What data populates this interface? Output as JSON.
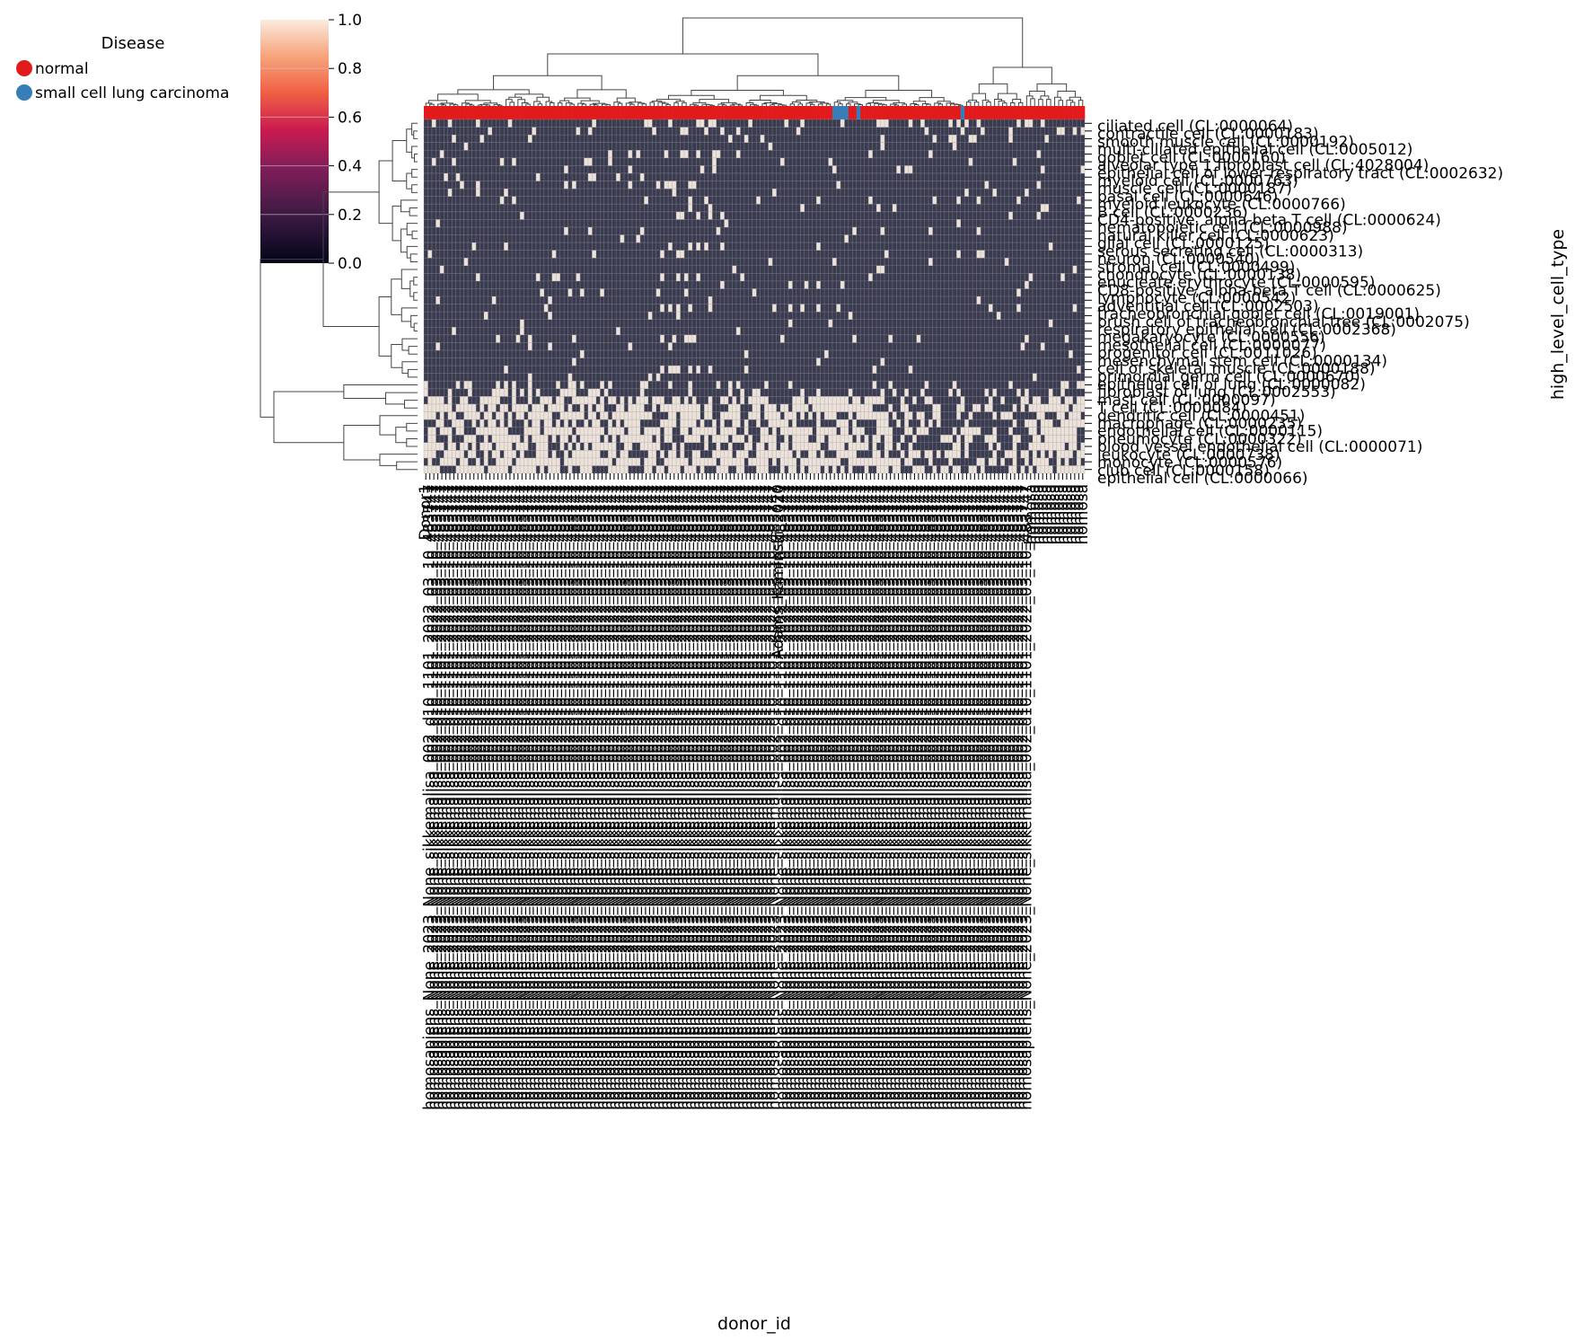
{
  "chart_data": {
    "type": "heatmap",
    "title": "",
    "xlabel": "donor_id",
    "ylabel": "high_level_cell_type",
    "colorbar": {
      "min": 0.0,
      "max": 1.0,
      "ticks": [
        "0.0",
        "0.2",
        "0.4",
        "0.6",
        "0.8",
        "1.0"
      ]
    },
    "legend": {
      "title": "Disease",
      "placement": "top-left",
      "entries": [
        {
          "label": "normal",
          "color": "#e31a1c"
        },
        {
          "label": "small cell lung carcinoma",
          "color": "#377eb8"
        }
      ]
    },
    "row_labels": [
      "ciliated cell (CL:0000064)",
      "contractile cell (CL:0000183)",
      "smooth muscle cell (CL:0000192)",
      "multi-ciliated epithelial cell (CL:0005012)",
      "goblet cell (CL:0000160)",
      "alveolar type 1 fibroblast cell (CL:4028004)",
      "epithelial cell of lower respiratory tract (CL:0002632)",
      "myeloid cell (CL:0000763)",
      "muscle cell (CL:0000187)",
      "basal cell (CL:0000646)",
      "myeloid leukocyte (CL:0000766)",
      "B cell (CL:0000236)",
      "CD4-positive, alpha-beta T cell (CL:0000624)",
      "hematopoietic cell (CL:0000988)",
      "natural killer cell (CL:0000623)",
      "glial cell (CL:0000125)",
      "serous secreting cell (CL:0000313)",
      "neuron (CL:0000540)",
      "stromal cell (CL:0000499)",
      "chondrocyte (CL:0000138)",
      "enucleate erythrocyte (CL:0000595)",
      "CD8-positive, alpha-beta T cell (CL:0000625)",
      "lymphocyte (CL:0000542)",
      "adventitial cell (CL:0002503)",
      "tracheobronchial goblet cell (CL:0019001)",
      "brush cell of tracheobronchial tree (CL:0002075)",
      "respiratory epithelial cell (CL:0002368)",
      "megakaryocyte (CL:0000556)",
      "mesothelial cell (CL:0000077)",
      "progenitor cell (CL:0011026)",
      "mesenchymal stem cell (CL:0000134)",
      "cell of skeletal muscle (CL:0000188)",
      "primordial germ cell (CL:0000670)",
      "epithelial cell of lung (CL:0000082)",
      "fibroblast of lung (CL:0002553)",
      "mast cell (CL:0000097)",
      "T cell (CL:0000084)",
      "dendritic cell (CL:0000451)",
      "macrophage (CL:0000235)",
      "endothelial cell (CL:0000115)",
      "pneumocyte (CL:0000322)",
      "blood vessel endothelial cell (CL:0000071)",
      "leukocyte (CL:0000738)",
      "monocyte (CL:0000576)",
      "club cell (CL:0000158)",
      "epithelial cell (CL:0000066)"
    ],
    "columns": {
      "count": 165,
      "disease_by_column": "normal except small cell lung carcinoma at columns 102-105 and 108 and 134",
      "label_examples": [
        "Donor1",
        "homosapiens_None_2023_None_sikkemalisa_002_d10_1101_2022_03_10_483747",
        "Adams_Kaminski_2020"
      ]
    }
  }
}
